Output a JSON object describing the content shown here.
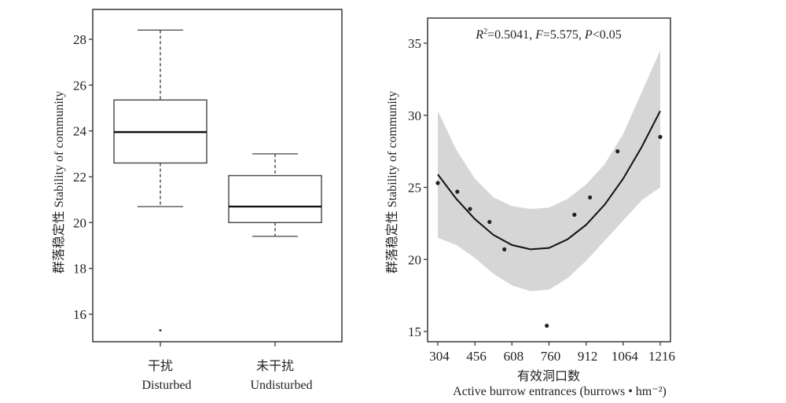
{
  "chart_data": [
    {
      "type": "box",
      "title": "",
      "ylabel": "群落稳定性  Stability of community",
      "xlabel": "",
      "ylim": [
        14.8,
        29.0
      ],
      "yticks": [
        16,
        18,
        20,
        22,
        24,
        26,
        28
      ],
      "categories": [
        {
          "cn": "干扰",
          "en": "Disturbed"
        },
        {
          "cn": "未干扰",
          "en": "Undisturbed"
        }
      ],
      "boxes": [
        {
          "name": "Disturbed",
          "whisker_low": 20.7,
          "q1": 22.6,
          "median": 23.95,
          "q3": 25.35,
          "whisker_high": 28.4,
          "outliers": [
            15.3
          ]
        },
        {
          "name": "Undisturbed",
          "whisker_low": 19.4,
          "q1": 20.0,
          "median": 20.7,
          "q3": 22.05,
          "whisker_high": 23.0,
          "outliers": []
        }
      ],
      "grid": false
    },
    {
      "type": "scatter",
      "title": "",
      "annotation": {
        "r2": "R²=0.5041",
        "f": "F=5.575",
        "p": "P<0.05"
      },
      "ylabel": "群落稳定性  Stability of community",
      "xlabel_cn": "有效洞口数",
      "xlabel_en": "Active burrow entrances (burrows • hm⁻²)",
      "xlim": [
        270,
        1260
      ],
      "ylim": [
        14.5,
        36.7
      ],
      "xticks": [
        304,
        456,
        608,
        760,
        912,
        1064,
        1216
      ],
      "yticks": [
        15,
        20,
        25,
        30,
        35
      ],
      "points": [
        {
          "x": 304,
          "y": 25.3
        },
        {
          "x": 384,
          "y": 24.7
        },
        {
          "x": 436,
          "y": 23.5
        },
        {
          "x": 516,
          "y": 22.6
        },
        {
          "x": 577,
          "y": 20.7
        },
        {
          "x": 751,
          "y": 15.4
        },
        {
          "x": 864,
          "y": 23.1
        },
        {
          "x": 928,
          "y": 24.3
        },
        {
          "x": 1041,
          "y": 27.5
        },
        {
          "x": 1216,
          "y": 28.5
        }
      ],
      "fit": {
        "type": "quadratic",
        "x": [
          304,
          380,
          456,
          532,
          608,
          684,
          760,
          836,
          912,
          988,
          1064,
          1140,
          1216
        ],
        "y": [
          25.9,
          24.2,
          22.8,
          21.7,
          21.0,
          20.7,
          20.8,
          21.4,
          22.4,
          23.8,
          25.6,
          27.8,
          30.3
        ]
      },
      "confidence_band": {
        "x": [
          304,
          380,
          456,
          532,
          608,
          684,
          760,
          836,
          912,
          988,
          1064,
          1140,
          1216
        ],
        "lower": [
          21.5,
          21.0,
          20.1,
          19.0,
          18.2,
          17.8,
          17.9,
          18.7,
          19.9,
          21.3,
          22.7,
          24.1,
          25.0
        ],
        "upper": [
          30.3,
          27.6,
          25.6,
          24.3,
          23.7,
          23.5,
          23.6,
          24.2,
          25.2,
          26.6,
          28.7,
          31.6,
          34.5
        ]
      },
      "grid": false
    }
  ]
}
